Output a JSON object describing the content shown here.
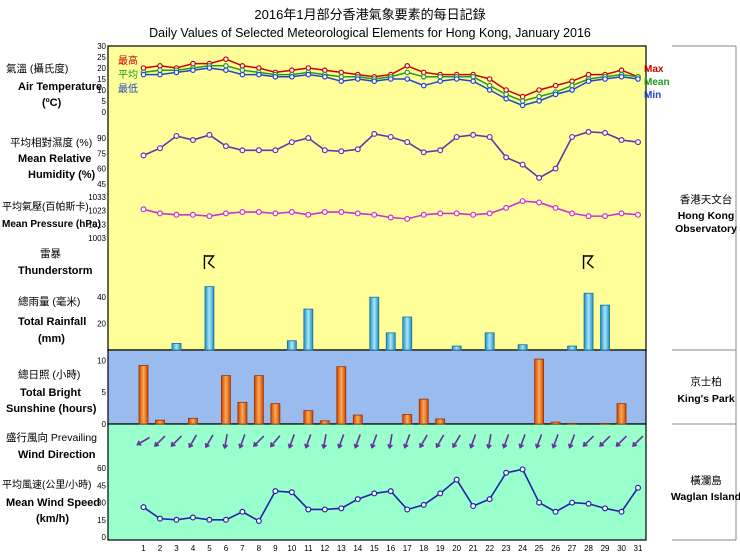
{
  "header": {
    "title_zh": "2016年1月部分香港氣象要素的每日記錄",
    "title_en": "Daily Values of Selected Meteorological Elements for Hong Kong, January 2016"
  },
  "panels": {
    "temperature": {
      "label_zh": "氣溫 (攝氏度)",
      "label_en_1": "Air Temperature",
      "label_en_2": "(ºC)",
      "legend_zh": [
        "最高",
        "平均",
        "最低"
      ],
      "legend_en": [
        "Max",
        "Mean",
        "Min"
      ]
    },
    "humidity": {
      "label_zh": "平均相對濕度 (%)",
      "label_en_1": "Mean Relative",
      "label_en_2": "Humidity  (%)"
    },
    "pressure": {
      "label_zh": "平均氣壓(百帕斯卡)",
      "label_en": "Mean Pressure (hPa)"
    },
    "thunder": {
      "label_zh": "雷暴",
      "label_en": "Thunderstorm",
      "symbol": "ᛒ"
    },
    "rainfall": {
      "label_zh": "總雨量 (毫米)",
      "label_en_1": "Total Rainfall",
      "label_en_2": "(mm)"
    },
    "sunshine": {
      "label_zh": "總日照 (小時)",
      "label_en_1": "Total Bright",
      "label_en_2": "Sunshine  (hours)"
    },
    "wind_dir": {
      "label_zh": "盛行風向 Prevailing",
      "label_en": "Wind Direction"
    },
    "wind_speed": {
      "label_zh": "平均風速(公里/小時)",
      "label_en_1": "Mean Wind Speed",
      "label_en_2": "(km/h)"
    }
  },
  "stations": {
    "hko": {
      "zh": "香港天文台",
      "en_1": "Hong Kong",
      "en_2": "Observatory"
    },
    "kp": {
      "zh": "京士柏",
      "en": "King's Park"
    },
    "wgl": {
      "zh": "橫瀾島",
      "en": "Waglan Island"
    }
  },
  "colors": {
    "top_bg": "#ffff99",
    "sun_bg": "#99bbee",
    "wind_bg": "#99ffcc",
    "max": "#cc0000",
    "mean": "#229922",
    "min": "#2244cc",
    "humidity": "#6633aa",
    "pressure": "#cc33cc",
    "rain": "#33aadd",
    "sun": "#ee6611",
    "wind": "#2222aa",
    "arrow": "#663399"
  },
  "chart_data": [
    {
      "type": "line",
      "name": "temperature",
      "x": [
        1,
        2,
        3,
        4,
        5,
        6,
        7,
        8,
        9,
        10,
        11,
        12,
        13,
        14,
        15,
        16,
        17,
        18,
        19,
        20,
        21,
        22,
        23,
        24,
        25,
        26,
        27,
        28,
        29,
        30,
        31
      ],
      "ylim": [
        0,
        30
      ],
      "yticks": [
        0,
        5,
        10,
        15,
        20,
        25,
        30
      ],
      "series": [
        {
          "name": "Max",
          "values": [
            20,
            21,
            20,
            22,
            22,
            24,
            21,
            20,
            18,
            19,
            20,
            19,
            18,
            17,
            16,
            17,
            21,
            18,
            17,
            17,
            17,
            15,
            10,
            7,
            10,
            12,
            14,
            17,
            17,
            19,
            16
          ]
        },
        {
          "name": "Mean",
          "values": [
            18,
            19,
            19,
            20,
            21,
            21,
            19,
            18,
            17,
            17,
            18,
            17,
            16,
            16,
            15,
            16,
            18,
            16,
            16,
            16,
            16,
            12,
            8,
            5,
            7,
            9,
            12,
            15,
            16,
            17,
            16
          ]
        },
        {
          "name": "Min",
          "values": [
            17,
            17,
            18,
            19,
            20,
            19,
            17,
            17,
            16,
            16,
            17,
            16,
            14,
            15,
            14,
            15,
            15,
            12,
            14,
            15,
            14,
            10,
            6,
            3,
            5,
            8,
            10,
            14,
            15,
            16,
            15
          ]
        }
      ]
    },
    {
      "type": "line",
      "name": "humidity",
      "x": [
        1,
        2,
        3,
        4,
        5,
        6,
        7,
        8,
        9,
        10,
        11,
        12,
        13,
        14,
        15,
        16,
        17,
        18,
        19,
        20,
        21,
        22,
        23,
        24,
        25,
        26,
        27,
        28,
        29,
        30,
        31
      ],
      "ylim": [
        45,
        90
      ],
      "yticks": [
        45,
        60,
        75,
        90
      ],
      "ytick_labels": [
        "45",
        "60",
        "75",
        "90"
      ],
      "minor_ticks": [
        30,
        35,
        40,
        50,
        55,
        65,
        70,
        80,
        85
      ],
      "series": [
        {
          "values": [
            73,
            80,
            92,
            88,
            93,
            82,
            78,
            78,
            78,
            86,
            90,
            78,
            77,
            79,
            94,
            91,
            86,
            76,
            78,
            91,
            93,
            91,
            71,
            64,
            51,
            60,
            91,
            96,
            95,
            88,
            86
          ]
        }
      ]
    },
    {
      "type": "line",
      "name": "pressure",
      "x": [
        1,
        2,
        3,
        4,
        5,
        6,
        7,
        8,
        9,
        10,
        11,
        12,
        13,
        14,
        15,
        16,
        17,
        18,
        19,
        20,
        21,
        22,
        23,
        24,
        25,
        26,
        27,
        28,
        29,
        30,
        31
      ],
      "ylim": [
        1003,
        1033
      ],
      "yticks": [
        1003,
        1013,
        1023,
        1033
      ],
      "series": [
        {
          "values": [
            1024,
            1021,
            1020,
            1020,
            1019,
            1021,
            1022,
            1022,
            1021,
            1022,
            1020,
            1022,
            1022,
            1021,
            1020,
            1018,
            1017,
            1020,
            1021,
            1021,
            1020,
            1021,
            1025,
            1030,
            1029,
            1025,
            1021,
            1019,
            1019,
            1021,
            1020
          ]
        }
      ]
    },
    {
      "type": "scatter",
      "name": "thunderstorm",
      "x": [
        5,
        28
      ]
    },
    {
      "type": "bar",
      "name": "rainfall",
      "x": [
        1,
        2,
        3,
        4,
        5,
        6,
        7,
        8,
        9,
        10,
        11,
        12,
        13,
        14,
        15,
        16,
        17,
        18,
        19,
        20,
        21,
        22,
        23,
        24,
        25,
        26,
        27,
        28,
        29,
        30,
        31
      ],
      "ylim": [
        0,
        50
      ],
      "yticks": [
        20,
        40
      ],
      "values": [
        0,
        0,
        5,
        0,
        48,
        0,
        0,
        0,
        0,
        7,
        31,
        0,
        0,
        0,
        40,
        13,
        25,
        0,
        0,
        3,
        0,
        13,
        0,
        4,
        0,
        0,
        3,
        43,
        34,
        0,
        0
      ]
    },
    {
      "type": "bar",
      "name": "sunshine",
      "x": [
        1,
        2,
        3,
        4,
        5,
        6,
        7,
        8,
        9,
        10,
        11,
        12,
        13,
        14,
        15,
        16,
        17,
        18,
        19,
        20,
        21,
        22,
        23,
        24,
        25,
        26,
        27,
        28,
        29,
        30,
        31
      ],
      "ylim": [
        0,
        11
      ],
      "yticks": [
        0,
        5,
        10
      ],
      "values": [
        9.2,
        0.6,
        0,
        0.9,
        0,
        7.6,
        3.4,
        7.6,
        3.2,
        0,
        2.1,
        0.5,
        9,
        1.4,
        0,
        0,
        1.5,
        3.9,
        0.8,
        0,
        0,
        0,
        0,
        0,
        10.2,
        0.3,
        0.1,
        0,
        0.1,
        3.2,
        0
      ]
    },
    {
      "type": "line",
      "name": "wind_speed",
      "x": [
        1,
        2,
        3,
        4,
        5,
        6,
        7,
        8,
        9,
        10,
        11,
        12,
        13,
        14,
        15,
        16,
        17,
        18,
        19,
        20,
        21,
        22,
        23,
        24,
        25,
        26,
        27,
        28,
        29,
        30,
        31
      ],
      "ylim": [
        0,
        75
      ],
      "yticks": [
        0,
        15,
        30,
        45,
        60
      ],
      "series": [
        {
          "values": [
            26,
            16,
            15,
            17,
            15,
            15,
            22,
            14,
            40,
            39,
            24,
            24,
            25,
            33,
            38,
            40,
            24,
            28,
            38,
            50,
            27,
            33,
            56,
            59,
            30,
            22,
            30,
            29,
            25,
            22,
            43
          ]
        }
      ]
    }
  ],
  "wind_direction_deg": [
    60,
    45,
    45,
    30,
    30,
    10,
    20,
    45,
    40,
    20,
    20,
    10,
    20,
    20,
    20,
    10,
    20,
    30,
    30,
    30,
    20,
    10,
    20,
    20,
    20,
    20,
    20,
    45,
    45,
    45,
    45
  ],
  "x_axis_labels": [
    "1",
    "2",
    "3",
    "4",
    "5",
    "6",
    "7",
    "8",
    "9",
    "10",
    "11",
    "12",
    "13",
    "14",
    "15",
    "16",
    "17",
    "18",
    "19",
    "20",
    "21",
    "22",
    "23",
    "24",
    "25",
    "26",
    "27",
    "28",
    "29",
    "30",
    "31"
  ]
}
